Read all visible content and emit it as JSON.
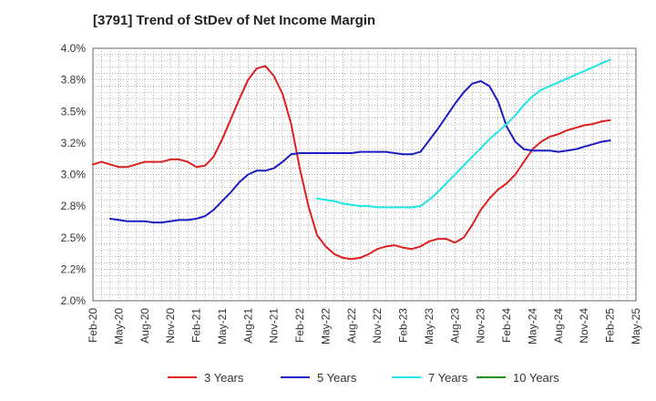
{
  "chart_data": {
    "type": "line",
    "title": "[3791]  Trend of StDev of Net Income Margin",
    "xlabel": "",
    "ylabel": "",
    "ylim": [
      2.0,
      4.0
    ],
    "y_ticks": [
      "2.0%",
      "2.2%",
      "2.5%",
      "2.8%",
      "3.0%",
      "3.2%",
      "3.5%",
      "3.8%",
      "4.0%"
    ],
    "y_tick_values": [
      2.0,
      2.25,
      2.5,
      2.75,
      3.0,
      3.25,
      3.5,
      3.75,
      4.0
    ],
    "x_ticks": [
      "Feb-20",
      "May-20",
      "Aug-20",
      "Nov-20",
      "Feb-21",
      "May-21",
      "Aug-21",
      "Nov-21",
      "Feb-22",
      "May-22",
      "Aug-22",
      "Nov-22",
      "Feb-23",
      "May-23",
      "Aug-23",
      "Nov-23",
      "Feb-24",
      "May-24",
      "Aug-24",
      "Nov-24",
      "Feb-25",
      "May-25"
    ],
    "x_tick_months": [
      0,
      3,
      6,
      9,
      12,
      15,
      18,
      21,
      24,
      27,
      30,
      33,
      36,
      39,
      42,
      45,
      48,
      51,
      54,
      57,
      60,
      63
    ],
    "x_range_months": [
      0,
      63
    ],
    "grid": true,
    "legend_position": "bottom",
    "series": [
      {
        "name": "3 Years",
        "color": "#dd1f1f",
        "x": [
          0,
          1,
          2,
          3,
          4,
          5,
          6,
          7,
          8,
          9,
          10,
          11,
          12,
          13,
          14,
          15,
          16,
          17,
          18,
          19,
          20,
          21,
          22,
          23,
          24,
          25,
          26,
          27,
          28,
          29,
          30,
          31,
          32,
          33,
          34,
          35,
          36,
          37,
          38,
          39,
          40,
          41,
          42,
          43,
          44,
          45,
          46,
          47,
          48,
          49,
          50,
          51,
          52,
          53,
          54,
          55,
          56,
          57,
          58,
          59,
          60
        ],
        "values": [
          3.08,
          3.1,
          3.08,
          3.06,
          3.06,
          3.08,
          3.1,
          3.1,
          3.1,
          3.12,
          3.12,
          3.1,
          3.06,
          3.07,
          3.14,
          3.28,
          3.44,
          3.6,
          3.75,
          3.84,
          3.86,
          3.78,
          3.64,
          3.4,
          3.05,
          2.75,
          2.52,
          2.43,
          2.37,
          2.34,
          2.33,
          2.34,
          2.37,
          2.41,
          2.43,
          2.44,
          2.42,
          2.41,
          2.43,
          2.47,
          2.49,
          2.49,
          2.46,
          2.5,
          2.6,
          2.72,
          2.81,
          2.88,
          2.93,
          3.0,
          3.1,
          3.2,
          3.26,
          3.3,
          3.32,
          3.35,
          3.37,
          3.39,
          3.4,
          3.42,
          3.43
        ]
      },
      {
        "name": "5 Years",
        "color": "#1c1cc2",
        "x": [
          2,
          3,
          4,
          5,
          6,
          7,
          8,
          9,
          10,
          11,
          12,
          13,
          14,
          15,
          16,
          17,
          18,
          19,
          20,
          21,
          22,
          23,
          24,
          25,
          26,
          27,
          28,
          29,
          30,
          31,
          32,
          33,
          34,
          35,
          36,
          37,
          38,
          39,
          40,
          41,
          42,
          43,
          44,
          45,
          46,
          47,
          48,
          49,
          50,
          51,
          52,
          53,
          54,
          55,
          56,
          57,
          58,
          59,
          60
        ],
        "values": [
          2.65,
          2.64,
          2.63,
          2.63,
          2.63,
          2.62,
          2.62,
          2.63,
          2.64,
          2.64,
          2.65,
          2.67,
          2.72,
          2.79,
          2.86,
          2.94,
          3.0,
          3.03,
          3.03,
          3.05,
          3.1,
          3.16,
          3.17,
          3.17,
          3.17,
          3.17,
          3.17,
          3.17,
          3.17,
          3.18,
          3.18,
          3.18,
          3.18,
          3.17,
          3.16,
          3.16,
          3.18,
          3.27,
          3.36,
          3.46,
          3.56,
          3.65,
          3.72,
          3.74,
          3.7,
          3.58,
          3.38,
          3.26,
          3.2,
          3.19,
          3.19,
          3.19,
          3.18,
          3.19,
          3.2,
          3.22,
          3.24,
          3.26,
          3.27
        ]
      },
      {
        "name": "7 Years",
        "color": "#1ee6e6",
        "x": [
          26,
          27,
          28,
          29,
          30,
          31,
          32,
          33,
          34,
          35,
          36,
          37,
          38,
          39,
          40,
          41,
          42,
          43,
          44,
          45,
          46,
          47,
          48,
          49,
          50,
          51,
          52,
          53,
          54,
          55,
          56,
          57,
          58,
          59,
          60
        ],
        "values": [
          2.81,
          2.8,
          2.79,
          2.77,
          2.76,
          2.75,
          2.75,
          2.74,
          2.74,
          2.74,
          2.74,
          2.74,
          2.75,
          2.8,
          2.86,
          2.93,
          3.0,
          3.07,
          3.14,
          3.21,
          3.28,
          3.34,
          3.4,
          3.47,
          3.55,
          3.62,
          3.67,
          3.7,
          3.73,
          3.76,
          3.79,
          3.82,
          3.85,
          3.88,
          3.91
        ]
      },
      {
        "name": "10 Years",
        "color": "#1e8c1e",
        "x": [],
        "values": []
      }
    ]
  }
}
